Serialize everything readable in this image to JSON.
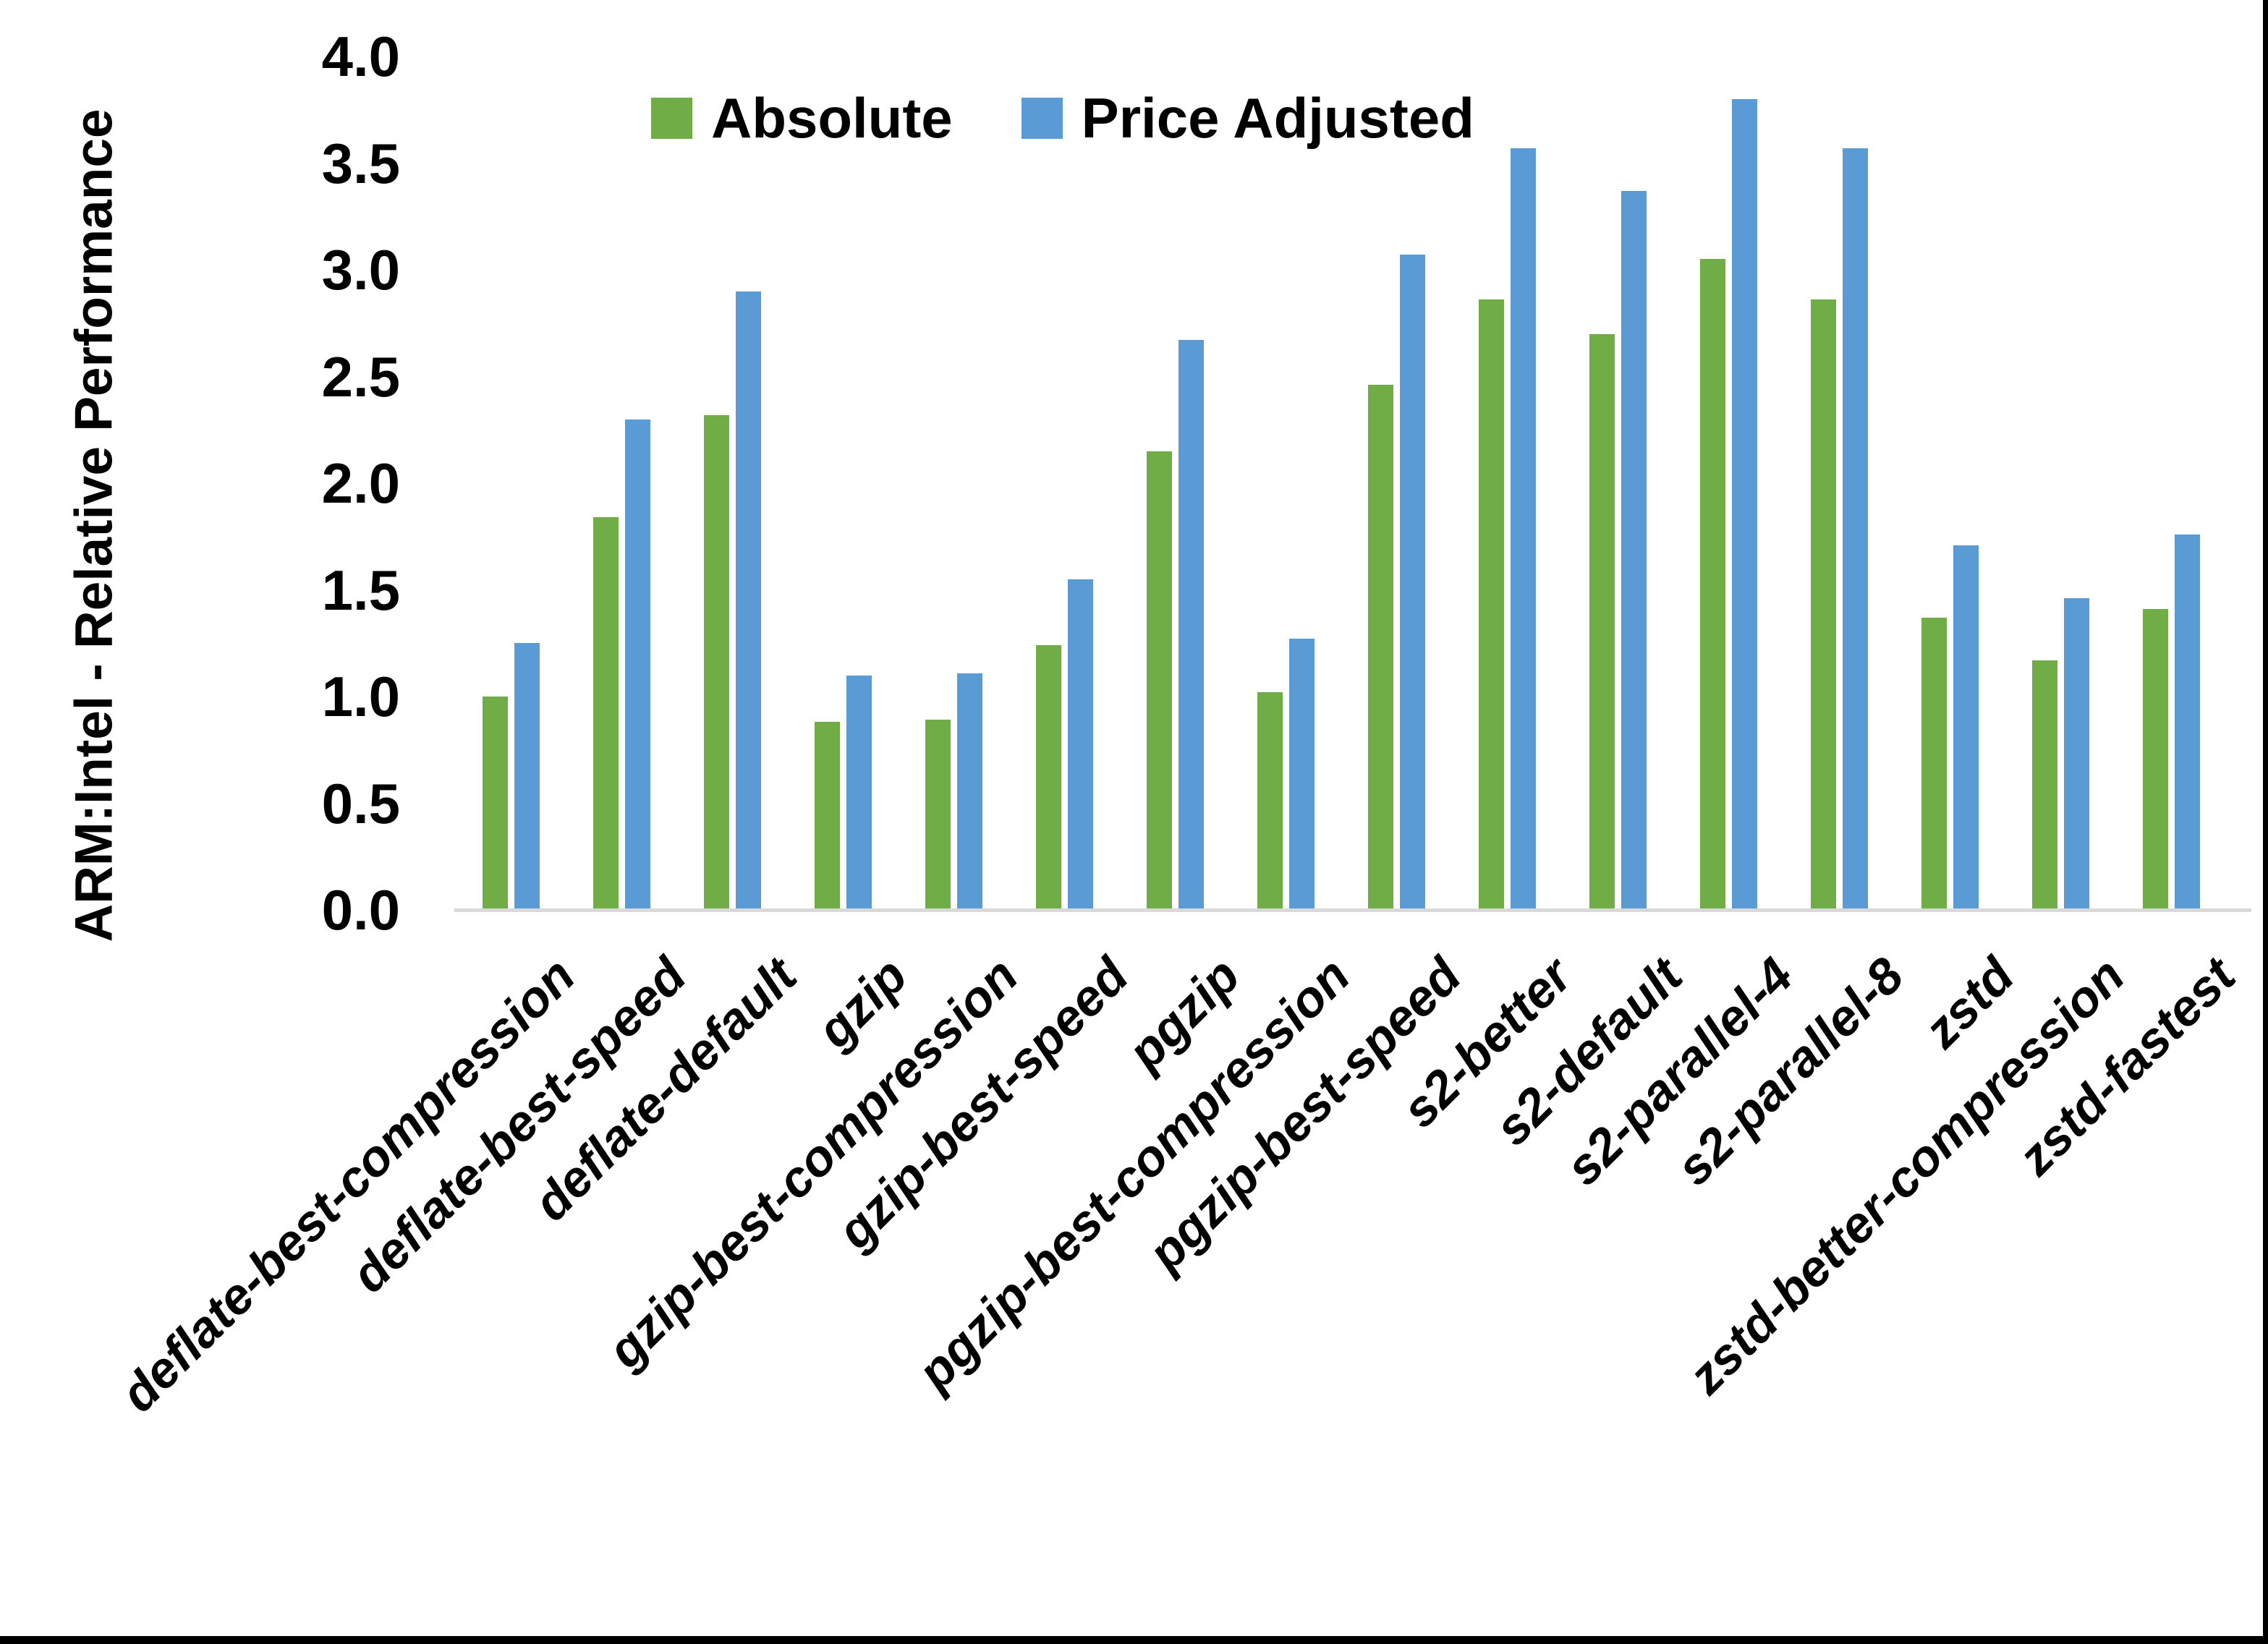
{
  "chart_data": {
    "type": "bar",
    "title": "",
    "xlabel": "",
    "ylabel": "ARM:Intel - Relative Performance",
    "ylim": [
      0.0,
      4.0
    ],
    "ytick_step": 0.5,
    "ytick_labels": [
      "0.0",
      "0.5",
      "1.0",
      "1.5",
      "2.0",
      "2.5",
      "3.0",
      "3.5",
      "4.0"
    ],
    "grid": false,
    "legend_position": "top-center",
    "categories": [
      "deflate-best-compression",
      "deflate-best-speed",
      "deflate-default",
      "gzip",
      "gzip-best-compression",
      "gzip-best-speed",
      "pgzip",
      "pgzip-best-compression",
      "pgzip-best-speed",
      "s2-better",
      "s2-default",
      "s2-parallel-4",
      "s2-parallel-8",
      "zstd",
      "zstd-better-compression",
      "zstd-fastest"
    ],
    "series": [
      {
        "name": "Absolute",
        "color": "#70AD47",
        "values": [
          1.0,
          1.84,
          2.32,
          0.88,
          0.89,
          1.24,
          2.15,
          1.02,
          2.46,
          2.86,
          2.7,
          3.05,
          2.86,
          1.37,
          1.17,
          1.41
        ]
      },
      {
        "name": "Price Adjusted",
        "color": "#5B9BD5",
        "values": [
          1.25,
          2.3,
          2.9,
          1.1,
          1.11,
          1.55,
          2.67,
          1.27,
          3.07,
          3.57,
          3.37,
          3.8,
          3.57,
          1.71,
          1.46,
          1.76
        ]
      }
    ]
  },
  "colors": {
    "background": "#ffffff",
    "axis_line": "#d9d9d9",
    "text": "#000000",
    "border": "#000000"
  }
}
